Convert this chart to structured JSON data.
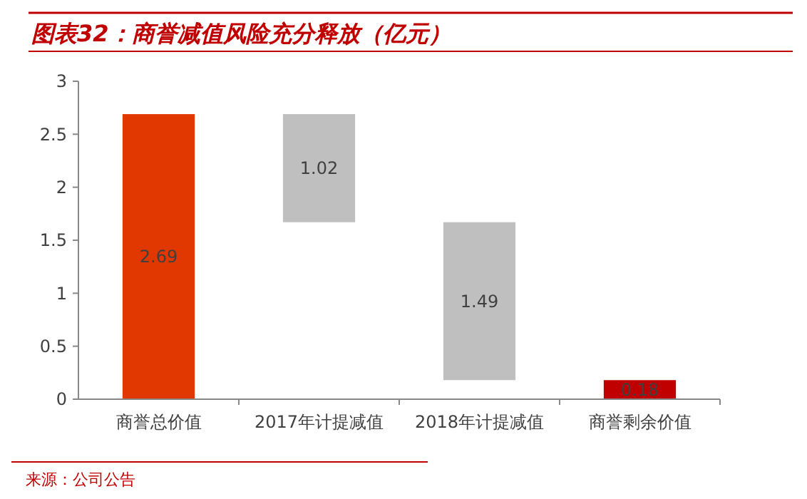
{
  "chart_data": {
    "type": "bar",
    "title": "图表32：商誉减值风险充分释放（亿元）",
    "categories": [
      "商誉总价值",
      "2017年计提减值",
      "2018年计提减值",
      "商誉剩余价值"
    ],
    "values": [
      2.69,
      1.02,
      1.49,
      0.18
    ],
    "base": [
      0,
      1.67,
      0.18,
      0
    ],
    "colors": [
      "#e03800",
      "#bfbfbf",
      "#bfbfbf",
      "#c00000"
    ],
    "ylim": [
      0,
      3
    ],
    "yticks": [
      0,
      0.5,
      1,
      1.5,
      2,
      2.5,
      3
    ],
    "data_labels": true,
    "annotations": [
      "来源：公司公告"
    ]
  }
}
